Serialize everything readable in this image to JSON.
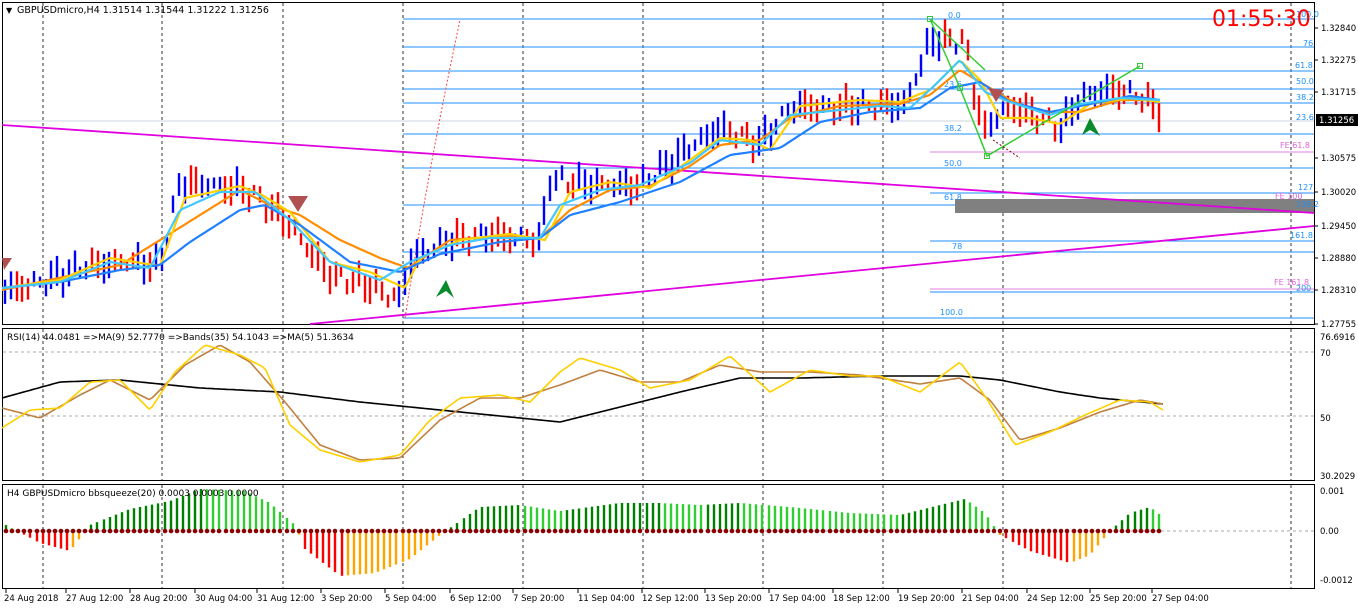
{
  "colors": {
    "background": "#ffffff",
    "grid": "#000000",
    "bull": "#0000ff",
    "bear": "#ff0000",
    "fib": "#1e90ff",
    "trend": "#e000e0",
    "ema_fast": "#40c8ff",
    "ema_slow": "#2080ff",
    "ma_yellow": "#ffd000",
    "ma_orange": "#ff8c00",
    "rsi_yellow": "#ffd000",
    "rsi_brown": "#c08040",
    "rsi_black": "#000000",
    "sq_green_dark": "#008000",
    "sq_green_light": "#32cd32",
    "sq_red": "#ff0000",
    "sq_orange": "#ffa500",
    "zigzag": "#32cd32",
    "clock": "#ff0000"
  },
  "header": {
    "symbol_label": "GBPUSDmicro,H4  1.31514 1.31544 1.31222 1.31256",
    "clock": "01:55:30"
  },
  "price_axis": {
    "ticks": [
      "1.32840",
      "1.32275",
      "1.31715",
      "1.31256",
      "1.30575",
      "1.30020",
      "1.29450",
      "1.28880",
      "1.28310",
      "1.27755"
    ],
    "current_price": "1.31256"
  },
  "fib_labels_right": [
    "100.0",
    "76",
    "61.8",
    "50.0",
    "38.2",
    "23.6"
  ],
  "fib_labels_inner": [
    "0.0",
    "23.6",
    "38.2",
    "50.0",
    "61.8",
    "78",
    "100.0"
  ],
  "fib_labels_ext": [
    "127",
    "161.8",
    "FE 61.8",
    "FE 100",
    "FE 161.8",
    "200",
    "138.2"
  ],
  "rsi": {
    "label": "RSI(14) 44.0481  =>MA(9) 52.7770  =>Bands(35) 54.1043  =>MA(5) 51.3634",
    "ticks": [
      "76.6916",
      "70",
      "50",
      "30.2029"
    ]
  },
  "squeeze": {
    "label": "H4 GBPUSDmicro bbsqueeze(20) 0.0003 0.0003 0.0000",
    "ticks": [
      "0.001",
      "0.00",
      "-0.0012"
    ]
  },
  "time_axis": [
    "24 Aug 2018",
    "27 Aug 12:00",
    "28 Aug 20:00",
    "30 Aug 04:00",
    "31 Aug 12:00",
    "3 Sep 20:00",
    "5 Sep 04:00",
    "6 Sep 12:00",
    "7 Sep 20:00",
    "11 Sep 04:00",
    "12 Sep 12:00",
    "13 Sep 20:00",
    "17 Sep 04:00",
    "18 Sep 12:00",
    "19 Sep 20:00",
    "21 Sep 04:00",
    "24 Sep 12:00",
    "25 Sep 20:00",
    "27 Sep 04:00"
  ]
}
